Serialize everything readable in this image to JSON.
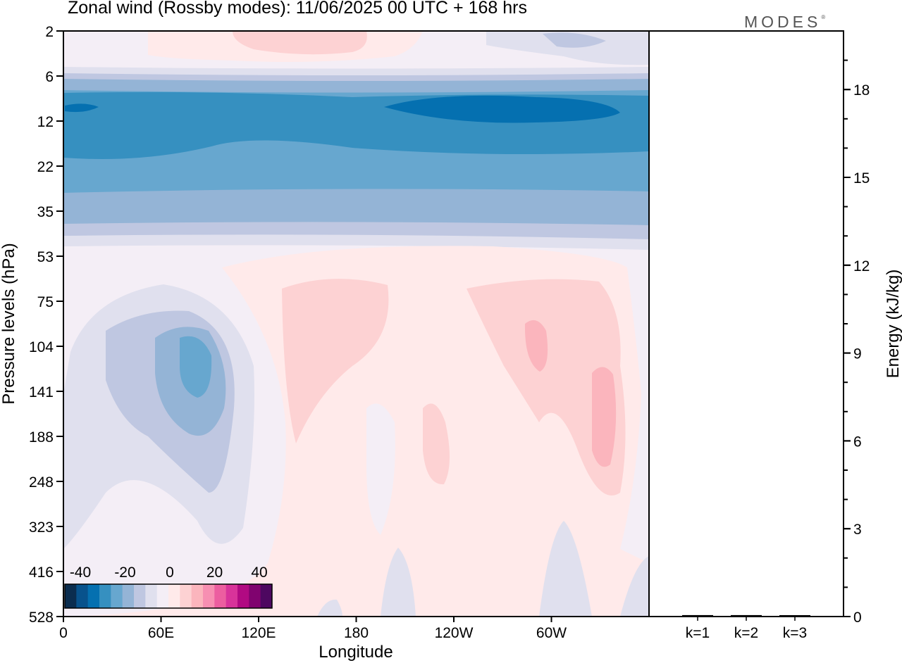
{
  "title": "Zonal wind (Rossby modes):  11/06/2025  00 UTC  + 168 hrs",
  "brand": "MODES",
  "brand_mark": "®",
  "colors": {
    "frame": "#000000",
    "background": "#f4eef6"
  },
  "chart_data": [
    {
      "type": "heatmap",
      "title": "Zonal wind (Rossby modes):  11/06/2025  00 UTC  + 168 hrs",
      "xlabel": "Longitude",
      "ylabel": "Pressure levels (hPa)",
      "x_ticks": [
        "0",
        "60E",
        "120E",
        "180",
        "120W",
        "60W"
      ],
      "y_ticks": [
        "2",
        "6",
        "12",
        "22",
        "35",
        "53",
        "75",
        "104",
        "141",
        "188",
        "248",
        "323",
        "416",
        "528"
      ],
      "y_scale": "log",
      "colorbar": {
        "labels": [
          "-40",
          "-20",
          "0",
          "20",
          "40"
        ],
        "colors": [
          "#0b2d4f",
          "#08528c",
          "#0570b0",
          "#3690c0",
          "#67a7cf",
          "#94b4d6",
          "#bfc7e1",
          "#e0e0ee",
          "#f4eef6",
          "#ffeaea",
          "#fdd2d3",
          "#fbb5bd",
          "#f78fb2",
          "#ec5ea0",
          "#d8339a",
          "#b10a82",
          "#80036f",
          "#4d0860"
        ],
        "placement": "bottom-left"
      }
    },
    {
      "type": "bar",
      "categories": [
        "k=1",
        "k=2",
        "k=3"
      ],
      "values": [
        0.05,
        0.05,
        0.02
      ],
      "ylabel": "Energy (kJ/kg)",
      "y_ticks": [
        "0",
        "3",
        "6",
        "9",
        "12",
        "15",
        "18"
      ],
      "ylim": [
        0,
        20
      ]
    }
  ]
}
